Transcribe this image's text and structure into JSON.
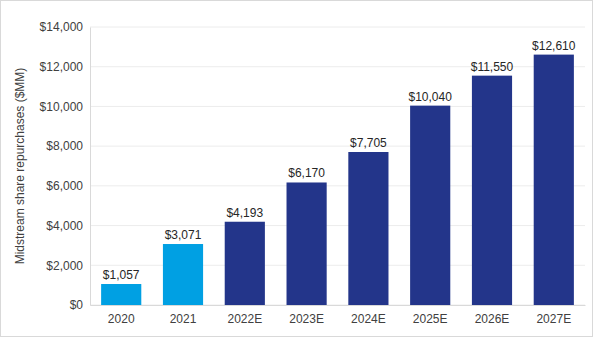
{
  "chart_data": {
    "type": "bar",
    "y_label": "Midstream share repurchases ($MM)",
    "categories": [
      "2020",
      "2021",
      "2022E",
      "2023E",
      "2024E",
      "2025E",
      "2026E",
      "2027E"
    ],
    "values": [
      1057,
      3071,
      4193,
      6170,
      7705,
      10040,
      11550,
      12610
    ],
    "value_labels": [
      "$1,057",
      "$3,071",
      "$4,193",
      "$6,170",
      "$7,705",
      "$10,040",
      "$11,550",
      "$12,610"
    ],
    "colors": [
      "#00a0e3",
      "#00a0e3",
      "#23358a",
      "#23358a",
      "#23358a",
      "#23358a",
      "#23358a",
      "#23358a"
    ],
    "ylim": [
      0,
      14000
    ],
    "yticks": [
      {
        "value": 0,
        "label": "$0"
      },
      {
        "value": 2000,
        "label": "$2,000"
      },
      {
        "value": 4000,
        "label": "$4,000"
      },
      {
        "value": 6000,
        "label": "$6,000"
      },
      {
        "value": 8000,
        "label": "$8,000"
      },
      {
        "value": 10000,
        "label": "$10,000"
      },
      {
        "value": 12000,
        "label": "$12,000"
      },
      {
        "value": 14000,
        "label": "$14,000"
      }
    ],
    "grid": true,
    "data_labels": true
  }
}
